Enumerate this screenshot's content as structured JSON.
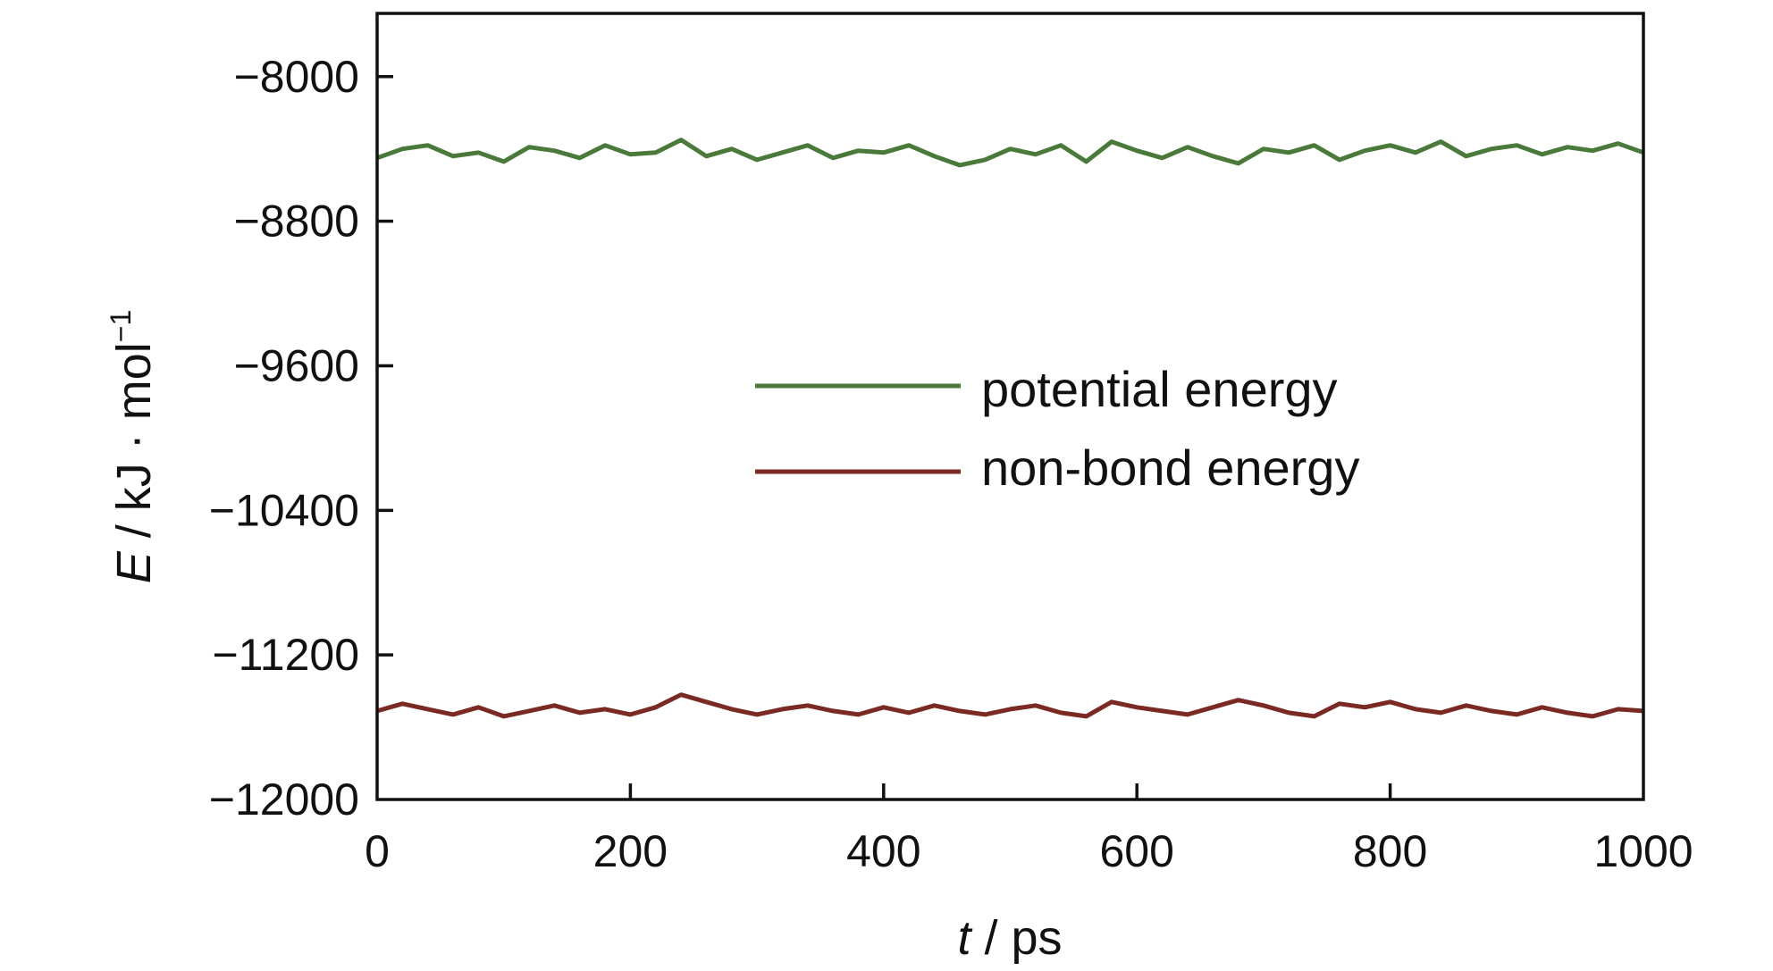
{
  "chart_data": {
    "type": "line",
    "xlabel": {
      "symbol": "t",
      "unit": " / ps"
    },
    "ylabel": {
      "symbol": "E",
      "unit": " / kJ · mol",
      "sup": "−1"
    },
    "xlim": [
      0,
      1000
    ],
    "ylim": [
      -12000,
      -7650
    ],
    "x_ticks": [
      0,
      200,
      400,
      600,
      800,
      1000
    ],
    "x_tick_labels": [
      "0",
      "200",
      "400",
      "600",
      "800",
      "1000"
    ],
    "y_ticks": [
      -8000,
      -8800,
      -9600,
      -10400,
      -11200,
      -12000
    ],
    "y_tick_labels": [
      "−8000",
      "−8800",
      "−9600",
      "−10400",
      "−11200",
      "−12000"
    ],
    "grid": false,
    "legend_position": "center",
    "series": [
      {
        "name": "potential energy",
        "color": "#4a7a3a",
        "x": [
          0,
          20,
          40,
          60,
          80,
          100,
          120,
          140,
          160,
          180,
          200,
          220,
          240,
          260,
          280,
          300,
          320,
          340,
          360,
          380,
          400,
          420,
          440,
          460,
          480,
          500,
          520,
          540,
          560,
          580,
          600,
          620,
          640,
          660,
          680,
          700,
          720,
          740,
          760,
          780,
          800,
          820,
          840,
          860,
          880,
          900,
          920,
          940,
          960,
          980,
          1000
        ],
        "values": [
          -8450,
          -8400,
          -8380,
          -8440,
          -8420,
          -8470,
          -8390,
          -8410,
          -8450,
          -8380,
          -8430,
          -8420,
          -8350,
          -8440,
          -8400,
          -8460,
          -8420,
          -8380,
          -8450,
          -8410,
          -8420,
          -8380,
          -8440,
          -8490,
          -8460,
          -8400,
          -8430,
          -8380,
          -8470,
          -8360,
          -8410,
          -8450,
          -8390,
          -8440,
          -8480,
          -8400,
          -8420,
          -8380,
          -8460,
          -8410,
          -8380,
          -8420,
          -8360,
          -8440,
          -8400,
          -8380,
          -8430,
          -8390,
          -8410,
          -8370,
          -8420
        ]
      },
      {
        "name": "non-bond energy",
        "color": "#7a2a22",
        "x": [
          0,
          20,
          40,
          60,
          80,
          100,
          120,
          140,
          160,
          180,
          200,
          220,
          240,
          260,
          280,
          300,
          320,
          340,
          360,
          380,
          400,
          420,
          440,
          460,
          480,
          500,
          520,
          540,
          560,
          580,
          600,
          620,
          640,
          660,
          680,
          700,
          720,
          740,
          760,
          780,
          800,
          820,
          840,
          860,
          880,
          900,
          920,
          940,
          960,
          980,
          1000
        ],
        "values": [
          -11510,
          -11470,
          -11500,
          -11530,
          -11490,
          -11540,
          -11510,
          -11480,
          -11520,
          -11500,
          -11530,
          -11490,
          -11420,
          -11460,
          -11500,
          -11530,
          -11500,
          -11480,
          -11510,
          -11530,
          -11490,
          -11520,
          -11480,
          -11510,
          -11530,
          -11500,
          -11480,
          -11520,
          -11540,
          -11460,
          -11490,
          -11510,
          -11530,
          -11490,
          -11450,
          -11480,
          -11520,
          -11540,
          -11470,
          -11490,
          -11460,
          -11500,
          -11520,
          -11480,
          -11510,
          -11530,
          -11490,
          -11520,
          -11540,
          -11500,
          -11510
        ]
      }
    ]
  }
}
